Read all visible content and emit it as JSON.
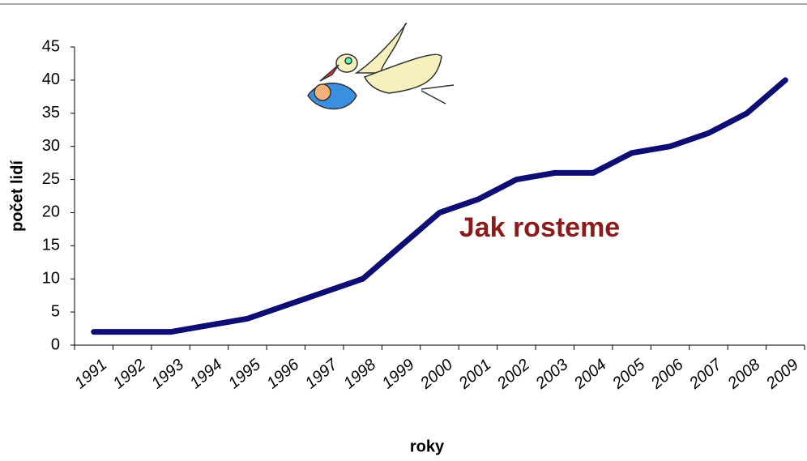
{
  "chart_data": {
    "type": "line",
    "title": "Jak rosteme",
    "x_label": "roky",
    "y_label": "počet lidí",
    "categories": [
      "1991",
      "1992",
      "1993",
      "1994",
      "1995",
      "1996",
      "1997",
      "1998",
      "1999",
      "2000",
      "2001",
      "2002",
      "2003",
      "2004",
      "2005",
      "2006",
      "2007",
      "2008",
      "2009"
    ],
    "series": [
      {
        "name": "počet lidí",
        "color": "#0d0d73",
        "values": [
          2,
          2,
          2,
          3,
          4,
          6,
          8,
          10,
          15,
          20,
          22,
          25,
          26,
          26,
          29,
          30,
          32,
          35,
          40
        ]
      }
    ],
    "ylim": [
      0,
      45
    ],
    "yticks": [
      0,
      5,
      10,
      15,
      20,
      25,
      30,
      35,
      40,
      45
    ],
    "grid": false
  }
}
